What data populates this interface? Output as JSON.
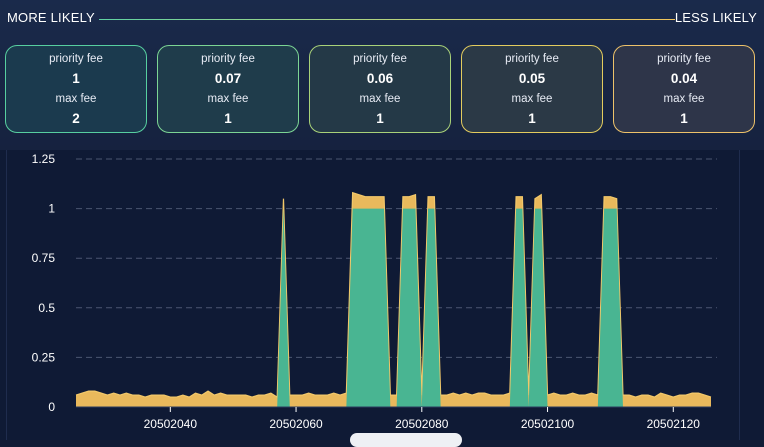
{
  "header": {
    "more_likely": "MORE LIKELY",
    "less_likely": "LESS LIKELY"
  },
  "cards": [
    {
      "priority_label": "priority fee",
      "priority_value": "1",
      "max_label": "max fee",
      "max_value": "2"
    },
    {
      "priority_label": "priority fee",
      "priority_value": "0.07",
      "max_label": "max fee",
      "max_value": "1"
    },
    {
      "priority_label": "priority fee",
      "priority_value": "0.06",
      "max_label": "max fee",
      "max_value": "1"
    },
    {
      "priority_label": "priority fee",
      "priority_value": "0.05",
      "max_label": "max fee",
      "max_value": "1"
    },
    {
      "priority_label": "priority fee",
      "priority_value": "0.04",
      "max_label": "max fee",
      "max_value": "1"
    }
  ],
  "colors": {
    "background": "#121c36",
    "series_max": "#e9b95c",
    "series_priority": "#49b592",
    "grid": "#5a6580"
  },
  "chart_data": {
    "type": "area",
    "title": "",
    "xlabel": "",
    "ylabel": "",
    "xlim": [
      20502025,
      20502126
    ],
    "ylim": [
      0,
      1.25
    ],
    "yticks": [
      0,
      0.25,
      0.5,
      0.75,
      1,
      1.25
    ],
    "ytick_labels": [
      "0",
      "0.25",
      "0.5",
      "0.75",
      "1",
      "1.25"
    ],
    "xticks": [
      20502040,
      20502060,
      20502080,
      20502100,
      20502120
    ],
    "xtick_labels": [
      "20502040",
      "20502060",
      "20502080",
      "20502100",
      "20502120"
    ],
    "grid": "horizontal dashed",
    "series": [
      {
        "name": "max fee",
        "points": [
          [
            20502025,
            0.06
          ],
          [
            20502026,
            0.07
          ],
          [
            20502027,
            0.08
          ],
          [
            20502028,
            0.08
          ],
          [
            20502029,
            0.07
          ],
          [
            20502030,
            0.06
          ],
          [
            20502031,
            0.07
          ],
          [
            20502032,
            0.06
          ],
          [
            20502033,
            0.07
          ],
          [
            20502034,
            0.06
          ],
          [
            20502035,
            0.06
          ],
          [
            20502036,
            0.05
          ],
          [
            20502037,
            0.06
          ],
          [
            20502038,
            0.06
          ],
          [
            20502039,
            0.06
          ],
          [
            20502040,
            0.05
          ],
          [
            20502041,
            0.05
          ],
          [
            20502042,
            0.06
          ],
          [
            20502043,
            0.05
          ],
          [
            20502044,
            0.07
          ],
          [
            20502045,
            0.06
          ],
          [
            20502046,
            0.08
          ],
          [
            20502047,
            0.06
          ],
          [
            20502048,
            0.07
          ],
          [
            20502049,
            0.06
          ],
          [
            20502050,
            0.06
          ],
          [
            20502051,
            0.06
          ],
          [
            20502052,
            0.06
          ],
          [
            20502053,
            0.05
          ],
          [
            20502054,
            0.06
          ],
          [
            20502055,
            0.06
          ],
          [
            20502056,
            0.07
          ],
          [
            20502057,
            0.05
          ],
          [
            20502058,
            1.05
          ],
          [
            20502059,
            0.06
          ],
          [
            20502060,
            0.06
          ],
          [
            20502061,
            0.06
          ],
          [
            20502062,
            0.07
          ],
          [
            20502063,
            0.06
          ],
          [
            20502064,
            0.06
          ],
          [
            20502065,
            0.06
          ],
          [
            20502066,
            0.07
          ],
          [
            20502067,
            0.06
          ],
          [
            20502068,
            0.07
          ],
          [
            20502069,
            1.08
          ],
          [
            20502070,
            1.07
          ],
          [
            20502071,
            1.06
          ],
          [
            20502072,
            1.06
          ],
          [
            20502073,
            1.06
          ],
          [
            20502074,
            1.06
          ],
          [
            20502075,
            0.06
          ],
          [
            20502076,
            0.06
          ],
          [
            20502077,
            1.06
          ],
          [
            20502078,
            1.06
          ],
          [
            20502079,
            1.07
          ],
          [
            20502080,
            0.06
          ],
          [
            20502081,
            1.06
          ],
          [
            20502082,
            1.06
          ],
          [
            20502083,
            0.06
          ],
          [
            20502084,
            0.06
          ],
          [
            20502085,
            0.07
          ],
          [
            20502086,
            0.06
          ],
          [
            20502087,
            0.07
          ],
          [
            20502088,
            0.06
          ],
          [
            20502089,
            0.07
          ],
          [
            20502090,
            0.07
          ],
          [
            20502091,
            0.06
          ],
          [
            20502092,
            0.06
          ],
          [
            20502093,
            0.06
          ],
          [
            20502094,
            0.07
          ],
          [
            20502095,
            1.06
          ],
          [
            20502096,
            1.06
          ],
          [
            20502097,
            0.06
          ],
          [
            20502098,
            1.05
          ],
          [
            20502099,
            1.07
          ],
          [
            20502100,
            0.06
          ],
          [
            20502101,
            0.07
          ],
          [
            20502102,
            0.06
          ],
          [
            20502103,
            0.06
          ],
          [
            20502104,
            0.07
          ],
          [
            20502105,
            0.06
          ],
          [
            20502106,
            0.06
          ],
          [
            20502107,
            0.07
          ],
          [
            20502108,
            0.06
          ],
          [
            20502109,
            1.06
          ],
          [
            20502110,
            1.06
          ],
          [
            20502111,
            1.05
          ],
          [
            20502112,
            0.06
          ],
          [
            20502113,
            0.06
          ],
          [
            20502114,
            0.05
          ],
          [
            20502115,
            0.06
          ],
          [
            20502116,
            0.06
          ],
          [
            20502117,
            0.05
          ],
          [
            20502118,
            0.07
          ],
          [
            20502119,
            0.06
          ],
          [
            20502120,
            0.05
          ],
          [
            20502121,
            0.06
          ],
          [
            20502122,
            0.06
          ],
          [
            20502123,
            0.07
          ],
          [
            20502124,
            0.07
          ],
          [
            20502125,
            0.06
          ],
          [
            20502126,
            0.05
          ]
        ]
      },
      {
        "name": "priority fee",
        "points": [
          [
            20502025,
            0
          ],
          [
            20502057,
            0
          ],
          [
            20502058,
            1
          ],
          [
            20502059,
            0
          ],
          [
            20502068,
            0
          ],
          [
            20502069,
            1
          ],
          [
            20502070,
            1
          ],
          [
            20502071,
            1
          ],
          [
            20502072,
            1
          ],
          [
            20502073,
            1
          ],
          [
            20502074,
            1
          ],
          [
            20502075,
            0
          ],
          [
            20502076,
            0
          ],
          [
            20502077,
            1
          ],
          [
            20502078,
            1
          ],
          [
            20502079,
            1
          ],
          [
            20502080,
            0
          ],
          [
            20502081,
            1
          ],
          [
            20502082,
            1
          ],
          [
            20502083,
            0
          ],
          [
            20502094,
            0
          ],
          [
            20502095,
            1
          ],
          [
            20502096,
            1
          ],
          [
            20502097,
            0
          ],
          [
            20502098,
            1
          ],
          [
            20502099,
            1
          ],
          [
            20502100,
            0
          ],
          [
            20502108,
            0
          ],
          [
            20502109,
            1
          ],
          [
            20502110,
            1
          ],
          [
            20502111,
            1
          ],
          [
            20502112,
            0
          ],
          [
            20502126,
            0
          ]
        ]
      }
    ]
  }
}
